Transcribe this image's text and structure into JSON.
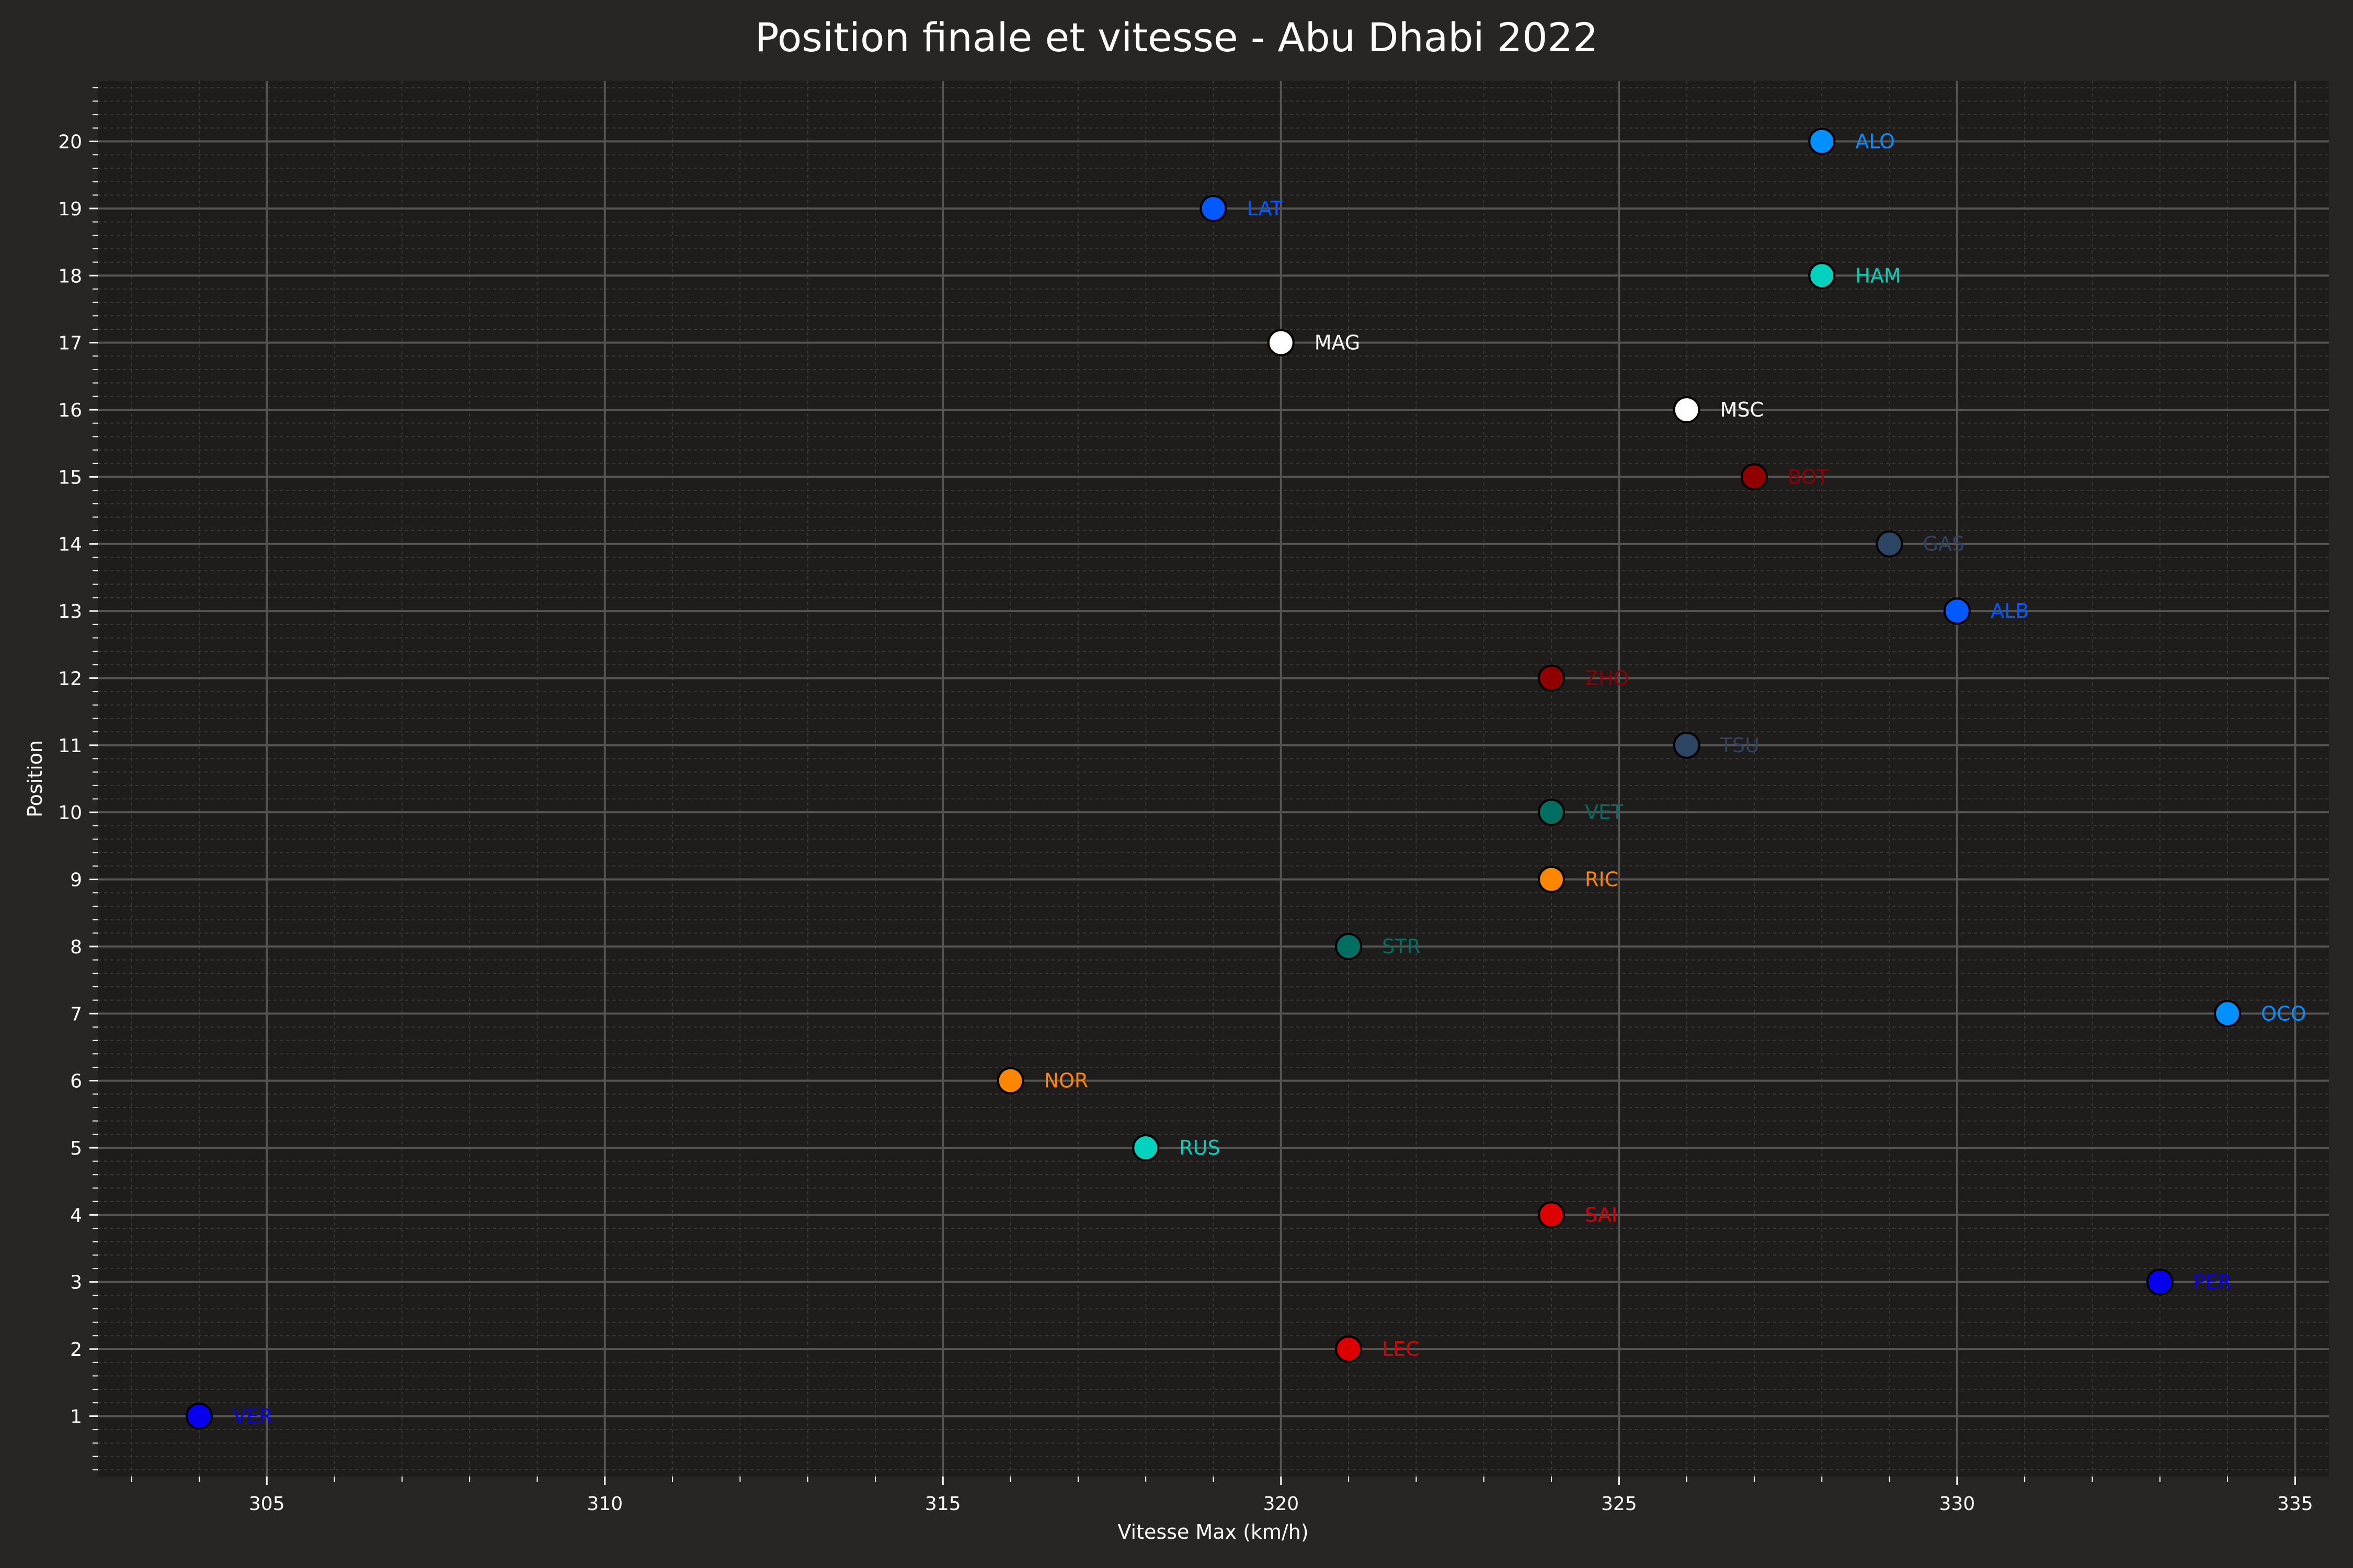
{
  "chart_data": {
    "type": "scatter",
    "title": "Position finale et vitesse - Abu Dhabi 2022",
    "xlabel": "Vitesse Max (km/h)",
    "ylabel": "Position",
    "xlim": [
      302.5,
      335.5
    ],
    "ylim": [
      0.1,
      20.9
    ],
    "xticks": [
      305,
      310,
      315,
      320,
      325,
      330,
      335
    ],
    "yticks": [
      1,
      2,
      3,
      4,
      5,
      6,
      7,
      8,
      9,
      10,
      11,
      12,
      13,
      14,
      15,
      16,
      17,
      18,
      19,
      20
    ],
    "grid": true,
    "colors": {
      "background": "#282525",
      "plot_background": "#1e1d1c",
      "major_grid": "#555353",
      "minor_grid": "#3a3836",
      "text": "#ffffff"
    },
    "points": [
      {
        "label": "VER",
        "x": 304,
        "y": 1,
        "color": "#0600ef"
      },
      {
        "label": "LEC",
        "x": 321,
        "y": 2,
        "color": "#dc0000"
      },
      {
        "label": "PER",
        "x": 333,
        "y": 3,
        "color": "#0600ef"
      },
      {
        "label": "SAI",
        "x": 324,
        "y": 4,
        "color": "#dc0000"
      },
      {
        "label": "RUS",
        "x": 318,
        "y": 5,
        "color": "#00d2be"
      },
      {
        "label": "NOR",
        "x": 316,
        "y": 6,
        "color": "#ff8700"
      },
      {
        "label": "OCO",
        "x": 334,
        "y": 7,
        "color": "#0090ff"
      },
      {
        "label": "STR",
        "x": 321,
        "y": 8,
        "color": "#006f62"
      },
      {
        "label": "RIC",
        "x": 324,
        "y": 9,
        "color": "#ff8700"
      },
      {
        "label": "VET",
        "x": 324,
        "y": 10,
        "color": "#006f62"
      },
      {
        "label": "TSU",
        "x": 326,
        "y": 11,
        "color": "#2b4562"
      },
      {
        "label": "ZHO",
        "x": 324,
        "y": 12,
        "color": "#900000"
      },
      {
        "label": "ALB",
        "x": 330,
        "y": 13,
        "color": "#005aff"
      },
      {
        "label": "GAS",
        "x": 329,
        "y": 14,
        "color": "#2b4562"
      },
      {
        "label": "BOT",
        "x": 327,
        "y": 15,
        "color": "#900000"
      },
      {
        "label": "MSC",
        "x": 326,
        "y": 16,
        "color": "#ffffff"
      },
      {
        "label": "MAG",
        "x": 320,
        "y": 17,
        "color": "#ffffff"
      },
      {
        "label": "HAM",
        "x": 328,
        "y": 18,
        "color": "#00d2be"
      },
      {
        "label": "LAT",
        "x": 319,
        "y": 19,
        "color": "#005aff"
      },
      {
        "label": "ALO",
        "x": 328,
        "y": 20,
        "color": "#0090ff"
      }
    ]
  }
}
